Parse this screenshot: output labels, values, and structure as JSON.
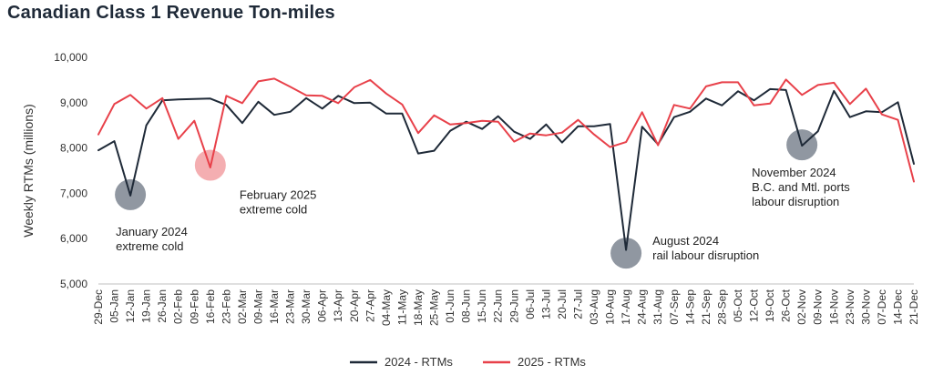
{
  "chart_data": {
    "type": "line",
    "title": "Canadian Class 1 Revenue Ton-miles",
    "xlabel": "",
    "ylabel": "Weekly RTMs (millions)",
    "ylim": [
      5000,
      10000
    ],
    "yticks": [
      5000,
      6000,
      7000,
      8000,
      9000,
      10000
    ],
    "ytick_labels": [
      "5,000",
      "6,000",
      "7,000",
      "8,000",
      "9,000",
      "10,000"
    ],
    "grid": false,
    "legend_position": "bottom-center",
    "categories": [
      "29-Dec",
      "05-Jan",
      "12-Jan",
      "19-Jan",
      "26-Jan",
      "02-Feb",
      "09-Feb",
      "16-Feb",
      "23-Feb",
      "02-Mar",
      "09-Mar",
      "16-Mar",
      "23-Mar",
      "30-Mar",
      "06-Apr",
      "13-Apr",
      "20-Apr",
      "27-Apr",
      "04-May",
      "11-May",
      "18-May",
      "25-May",
      "01-Jun",
      "08-Jun",
      "15-Jun",
      "22-Jun",
      "29-Jun",
      "06-Jul",
      "13-Jul",
      "20-Jul",
      "27-Jul",
      "03-Aug",
      "10-Aug",
      "17-Aug",
      "24-Aug",
      "31-Aug",
      "07-Sep",
      "14-Sep",
      "21-Sep",
      "28-Sep",
      "05-Oct",
      "12-Oct",
      "19-Oct",
      "26-Oct",
      "02-Nov",
      "09-Nov",
      "16-Nov",
      "23-Nov",
      "30-Nov",
      "07-Dec",
      "14-Dec",
      "21-Dec"
    ],
    "series": [
      {
        "name": "2024 - RTMs",
        "color": "#1f2a38",
        "values": [
          7950,
          8150,
          6950,
          8500,
          9050,
          9070,
          9080,
          9090,
          8950,
          8550,
          9020,
          8730,
          8800,
          9100,
          8870,
          9150,
          8990,
          9000,
          8760,
          8760,
          7880,
          7940,
          8380,
          8580,
          8420,
          8700,
          8360,
          8200,
          8520,
          8120,
          8480,
          8480,
          8530,
          5750,
          8470,
          8080,
          8680,
          8800,
          9090,
          8940,
          9250,
          9050,
          9300,
          9280,
          8050,
          8370,
          9260,
          8680,
          8810,
          8790,
          9010,
          7650
        ]
      },
      {
        "name": "2025 - RTMs",
        "color": "#e8414a",
        "values": [
          8300,
          8970,
          9170,
          8870,
          9100,
          8200,
          8600,
          7570,
          9150,
          8990,
          9470,
          9530,
          9350,
          9160,
          9150,
          8990,
          9340,
          9500,
          9200,
          8960,
          8330,
          8720,
          8520,
          8550,
          8600,
          8580,
          8140,
          8320,
          8280,
          8340,
          8620,
          8300,
          8020,
          8130,
          8790,
          8060,
          8950,
          8870,
          9360,
          9450,
          9450,
          8940,
          8980,
          9510,
          9170,
          9390,
          9440,
          8970,
          9310,
          8740,
          8620,
          7260
        ]
      }
    ],
    "annotations": [
      {
        "lines": [
          "January 2024",
          "extreme cold"
        ],
        "category": "12-Jan",
        "value": 6970,
        "color": "#7c8591"
      },
      {
        "lines": [
          "February 2025",
          "extreme cold"
        ],
        "category": "16-Feb",
        "value": 7620,
        "color": "#f2a0a3"
      },
      {
        "lines": [
          "August 2024",
          "rail labour disruption"
        ],
        "category": "17-Aug",
        "value": 5680,
        "color": "#7c8591"
      },
      {
        "lines": [
          "November 2024",
          "B.C. and Mtl. ports",
          "labour disruption"
        ],
        "category": "02-Nov",
        "value": 8070,
        "color": "#7c8591"
      }
    ]
  }
}
